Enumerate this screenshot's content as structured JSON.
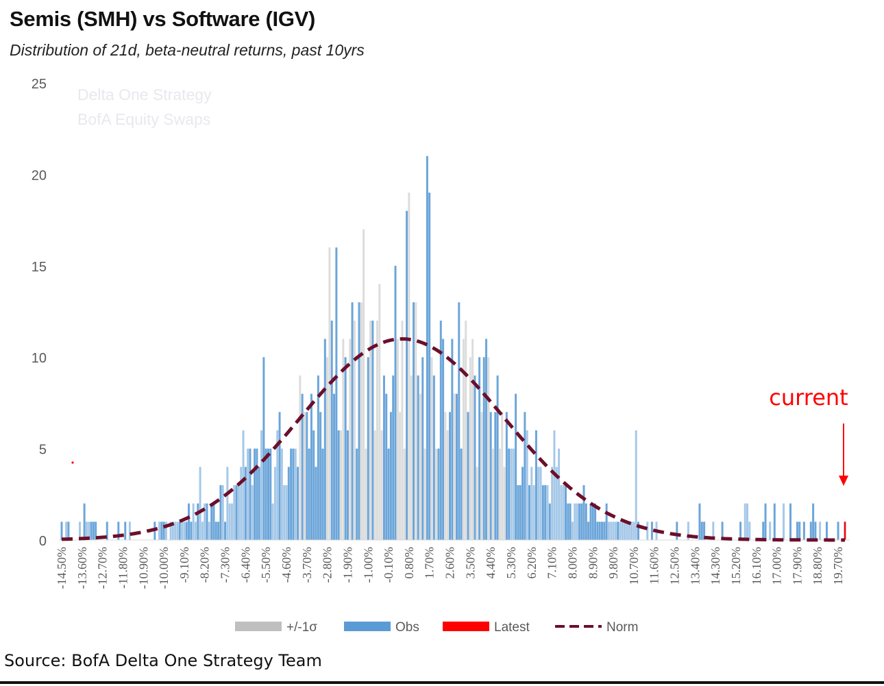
{
  "header": {
    "title": "Semis (SMH) vs Software (IGV)",
    "subtitle": "Distribution of 21d, beta-neutral returns, past 10yrs"
  },
  "watermark": {
    "line1": "Delta One Strategy",
    "line2": "BofA Equity Swaps"
  },
  "annotation": {
    "label": "current",
    "color": "#ff0000"
  },
  "source": "Source: BofA Delta One Strategy Team",
  "colors": {
    "obs": "#5b9bd5",
    "sigma": "#bfbfbf",
    "latest": "#ff0000",
    "norm": "#6b0f2a",
    "axis_text": "#595959"
  },
  "chart_data": {
    "type": "bar",
    "title": "Semis (SMH) vs Software (IGV)",
    "subtitle": "Distribution of 21d, beta-neutral returns, past 10yrs",
    "xlabel": "",
    "ylabel": "",
    "ylim": [
      0,
      25
    ],
    "yticks": [
      0,
      5,
      10,
      15,
      20,
      25
    ],
    "x_range_pct": [
      -14.5,
      20.0
    ],
    "bin_width_pct": 0.1,
    "tick_labels": [
      "-14.50%",
      "-13.60%",
      "-12.70%",
      "-11.80%",
      "-10.90%",
      "-10.00%",
      "-9.10%",
      "-8.20%",
      "-7.30%",
      "-6.40%",
      "-5.50%",
      "-4.60%",
      "-3.70%",
      "-2.80%",
      "-1.90%",
      "-1.00%",
      "-0.10%",
      "0.80%",
      "1.70%",
      "2.60%",
      "3.50%",
      "4.40%",
      "5.30%",
      "6.20%",
      "7.10%",
      "8.00%",
      "8.90%",
      "9.80%",
      "10.70%",
      "11.60%",
      "12.50%",
      "13.40%",
      "14.30%",
      "15.20%",
      "16.10%",
      "17.00%",
      "17.90%",
      "18.80%",
      "19.70%"
    ],
    "legend": [
      "+/-1σ",
      "Obs",
      "Latest",
      "Norm"
    ],
    "legend_position": "bottom",
    "norm": {
      "mean_pct": 0.5,
      "sd_pct": 4.5,
      "peak": 11.0
    },
    "sigma_band_pct": [
      -4.0,
      5.0
    ],
    "latest": {
      "x_pct": 20.0,
      "value": 1
    },
    "obs_highlights": [
      {
        "x_pct": -2.7,
        "value": 16
      },
      {
        "x_pct": -2.4,
        "value": 16
      },
      {
        "x_pct": -1.2,
        "value": 17
      },
      {
        "x_pct": 0.7,
        "value": 18
      },
      {
        "x_pct": 0.8,
        "value": 19
      },
      {
        "x_pct": 1.6,
        "value": 21
      },
      {
        "x_pct": 1.7,
        "value": 19
      },
      {
        "x_pct": -5.6,
        "value": 10
      },
      {
        "x_pct": -6.5,
        "value": 6
      },
      {
        "x_pct": 7.2,
        "value": 6
      },
      {
        "x_pct": 10.8,
        "value": 6
      },
      {
        "x_pct": -8.4,
        "value": 4
      },
      {
        "x_pct": -13.5,
        "value": 2
      },
      {
        "x_pct": 13.6,
        "value": 2
      },
      {
        "x_pct": 15.6,
        "value": 2
      },
      {
        "x_pct": 17.6,
        "value": 2
      }
    ]
  }
}
